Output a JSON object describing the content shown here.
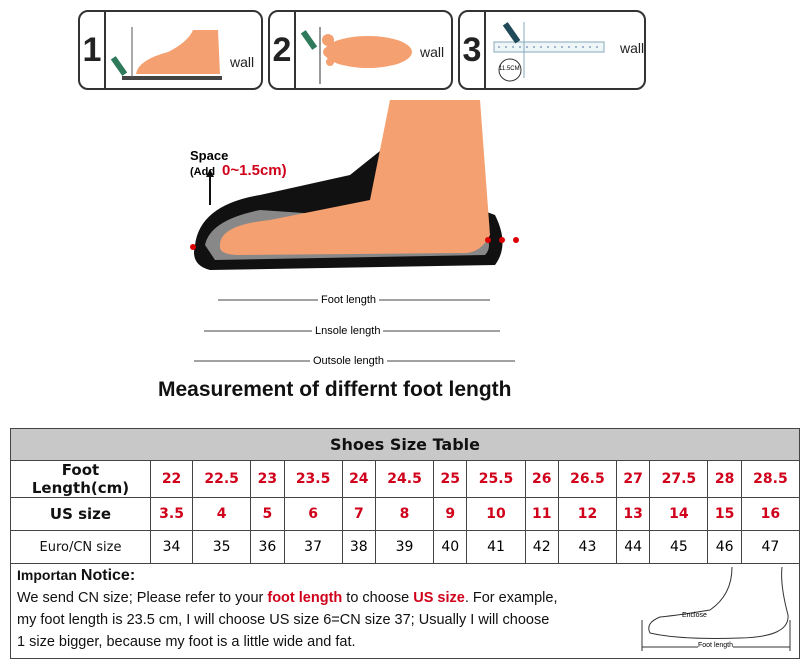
{
  "steps": [
    {
      "number": "1",
      "wall_label": "wall"
    },
    {
      "number": "2",
      "wall_label": "wall"
    },
    {
      "number": "3",
      "wall_label": "wall",
      "ruler_badge": "11.5CM"
    }
  ],
  "diagram": {
    "space_label": "Space",
    "add_label": "(Add",
    "add_range": "0~1.5cm)",
    "foot_length": "Foot length",
    "insole_length": "Lnsole length",
    "outsole_length": "Outsole length",
    "heading": "Measurement of differnt foot length"
  },
  "table": {
    "title": "Shoes Size Table",
    "rows": [
      {
        "label": "Foot Length(cm)",
        "values": [
          "22",
          "22.5",
          "23",
          "23.5",
          "24",
          "24.5",
          "25",
          "25.5",
          "26",
          "26.5",
          "27",
          "27.5",
          "28",
          "28.5"
        ]
      },
      {
        "label": "US size",
        "values": [
          "3.5",
          "4",
          "5",
          "6",
          "7",
          "8",
          "9",
          "10",
          "11",
          "12",
          "13",
          "14",
          "15",
          "16"
        ]
      },
      {
        "label": "Euro/CN size",
        "values": [
          "34",
          "35",
          "36",
          "37",
          "38",
          "39",
          "40",
          "41",
          "42",
          "43",
          "44",
          "45",
          "46",
          "47"
        ]
      }
    ]
  },
  "notice": {
    "title_a": "Importan",
    "title_b": "Notice:",
    "p1": "We send CN size; Please refer to your ",
    "h1": "foot length",
    "p2": " to choose ",
    "h2": "US size",
    "p3": ". For example,",
    "line2": "my foot length is 23.5 cm, I will choose US size 6=CN size 37; Usually I will choose",
    "line3": "1 size bigger, because my foot is a little wide and fat.",
    "enclose": "Enclose",
    "foot_length": "Foot length"
  },
  "colors": {
    "accent": "#d0021b",
    "header_bg": "#c8c8c8",
    "foot": "#f4a070"
  }
}
